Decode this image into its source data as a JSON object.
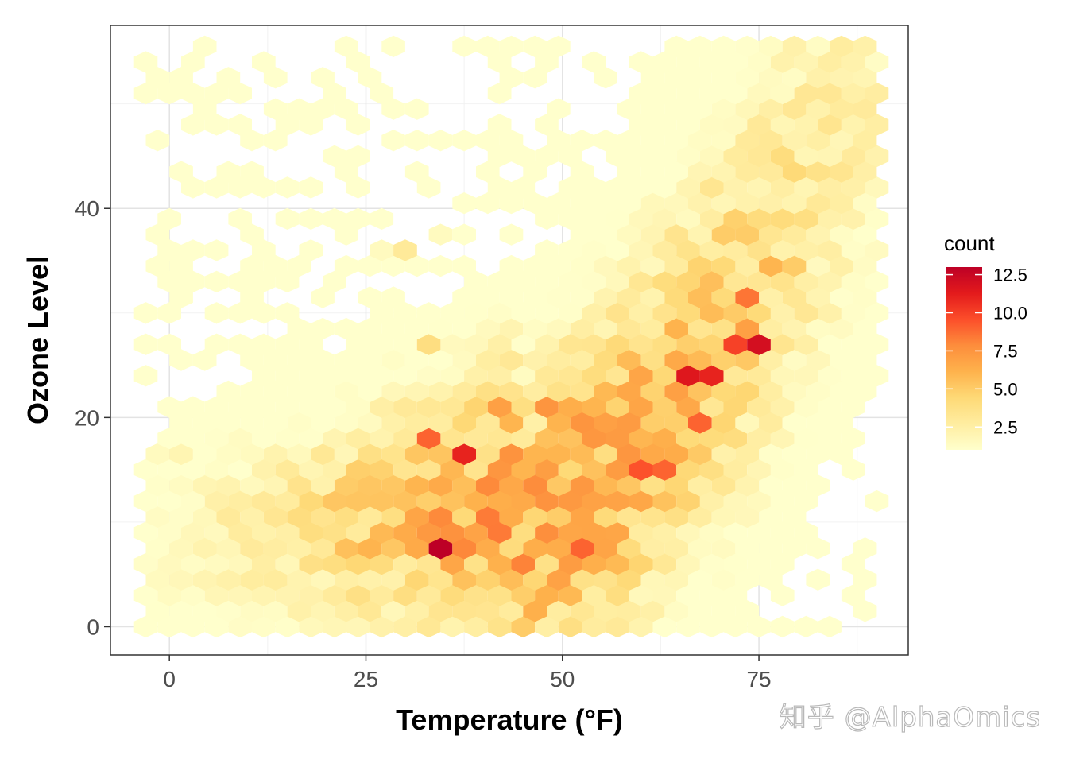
{
  "chart_data": {
    "type": "heatmap",
    "subtype": "hexbin",
    "title": "",
    "xlabel": "Temperature (°F)",
    "ylabel": "Ozone Level",
    "xlim": [
      -7.5,
      94
    ],
    "ylim": [
      -2.7,
      57.5
    ],
    "x_ticks": [
      0,
      25,
      50,
      75
    ],
    "y_ticks": [
      0,
      20,
      40
    ],
    "grid": true,
    "legend": {
      "title": "count",
      "position": "right",
      "ticks": [
        2.5,
        5.0,
        7.5,
        10.0,
        12.5
      ],
      "tick_labels": [
        "2.5",
        "5.0",
        "7.5",
        "10.0",
        "12.5"
      ],
      "range": [
        1,
        13
      ],
      "colors": [
        "#ffffcc",
        "#ffeda0",
        "#fed976",
        "#feb24c",
        "#fd8d3c",
        "#fc4e2a",
        "#e31a1c",
        "#bd0026"
      ]
    },
    "hex_bins": [
      [
        -3,
        16,
        1.5
      ],
      [
        0,
        16,
        2
      ],
      [
        6,
        19,
        1
      ],
      [
        9,
        16,
        1.5
      ],
      [
        11,
        20.5,
        1
      ],
      [
        21,
        38,
        1
      ],
      [
        27,
        36.5,
        1.5
      ],
      [
        30,
        36.5,
        3
      ],
      [
        32,
        26.5,
        4
      ],
      [
        34,
        41.5,
        1
      ],
      [
        35,
        38,
        1.5
      ],
      [
        33,
        8,
        13
      ],
      [
        36,
        8,
        11
      ],
      [
        38,
        8,
        8
      ],
      [
        51,
        8,
        9
      ],
      [
        33,
        17.5,
        9
      ],
      [
        37,
        16,
        11
      ],
      [
        34,
        13,
        6.5
      ],
      [
        42,
        20.5,
        7
      ],
      [
        44,
        19,
        6
      ],
      [
        45,
        14.5,
        6
      ],
      [
        47,
        16,
        6
      ],
      [
        49,
        20.5,
        7.5
      ],
      [
        50,
        16,
        6
      ],
      [
        52,
        19,
        7.5
      ],
      [
        54,
        16,
        4
      ],
      [
        56,
        19,
        7
      ],
      [
        61,
        14.5,
        9.5
      ],
      [
        63,
        14.5,
        9
      ],
      [
        64,
        22,
        7
      ],
      [
        67,
        23.5,
        11.5
      ],
      [
        70,
        23.5,
        11
      ],
      [
        68,
        19,
        9
      ],
      [
        71,
        26.5,
        9
      ],
      [
        73,
        26.5,
        10
      ],
      [
        76,
        26.5,
        12
      ],
      [
        74,
        31.5,
        8.5
      ],
      [
        72,
        28,
        7
      ],
      [
        76,
        35,
        6
      ],
      [
        74,
        37,
        5
      ],
      [
        71,
        38,
        5
      ],
      [
        78,
        35,
        5
      ]
    ]
  },
  "watermark": {
    "text": "知乎 @AlphaOmics"
  }
}
